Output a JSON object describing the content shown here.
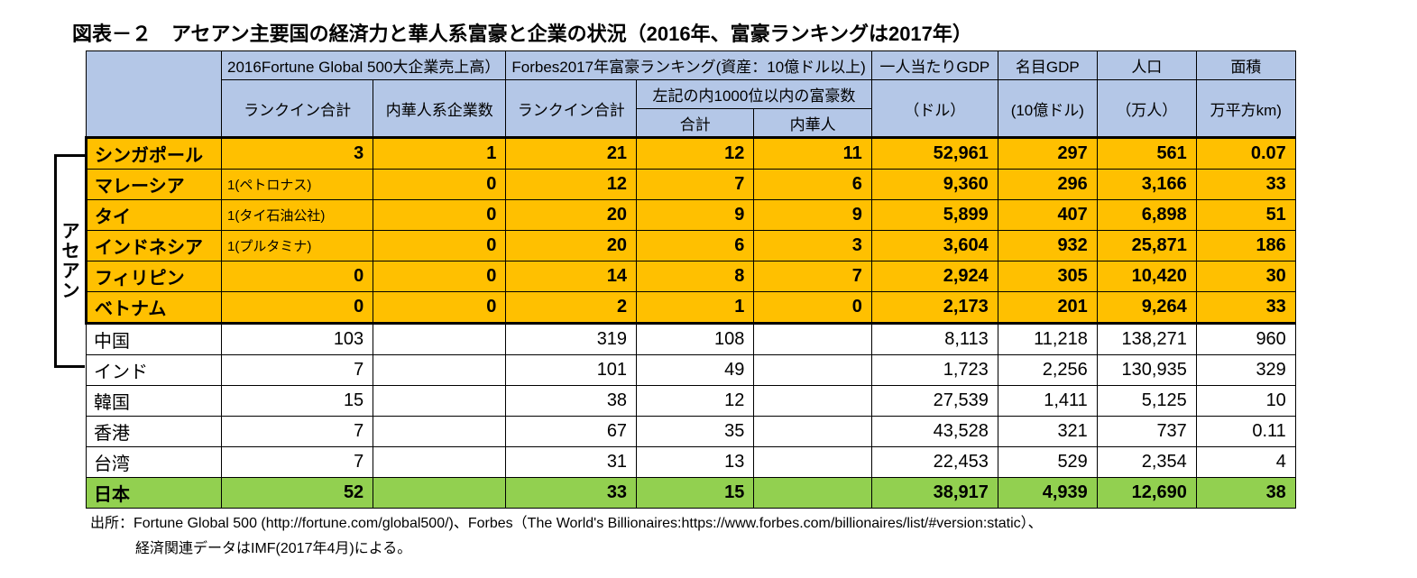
{
  "title": "図表－２　アセアン主要国の経済力と華人系富豪と企業の状況（2016年、富豪ランキングは2017年）",
  "group_label": "アセアン",
  "headers": {
    "fortune_group": "2016Fortune Global 500大企業売上高）",
    "fortune_rankin": "ランクイン合計",
    "fortune_chinese": "内華人系企業数",
    "forbes_group": "Forbes2017年富豪ランキング(資産：10億ドル以上)",
    "forbes_rankin": "ランクイン合計",
    "forbes_1000": "左記の内1000位以内の富豪数",
    "forbes_total": "合計",
    "forbes_chinese": "内華人",
    "gdp_pc": "一人当たりGDP",
    "gdp_pc_unit": "（ドル）",
    "gdp_nom": "名目GDP",
    "gdp_nom_unit": "(10億ドル)",
    "pop": "人口",
    "pop_unit": "（万人）",
    "area": "面積",
    "area_unit": "万平方km)"
  },
  "rows": [
    {
      "kind": "asean",
      "pos": "first",
      "country": "シンガポール",
      "fortune": "3",
      "fortune_txt": "",
      "chinese_co": "1",
      "forbes": "21",
      "f1000": "12",
      "f_cn": "11",
      "gdppc": "52,961",
      "gdp": "297",
      "pop": "561",
      "area": "0.07"
    },
    {
      "kind": "asean",
      "country": "マレーシア",
      "fortune": "",
      "fortune_txt": "1(ペトロナス)",
      "chinese_co": "0",
      "forbes": "12",
      "f1000": "7",
      "f_cn": "6",
      "gdppc": "9,360",
      "gdp": "296",
      "pop": "3,166",
      "area": "33"
    },
    {
      "kind": "asean",
      "country": "タイ",
      "fortune": "",
      "fortune_txt": "1(タイ石油公社)",
      "chinese_co": "0",
      "forbes": "20",
      "f1000": "9",
      "f_cn": "9",
      "gdppc": "5,899",
      "gdp": "407",
      "pop": "6,898",
      "area": "51"
    },
    {
      "kind": "asean",
      "country": "インドネシア",
      "fortune": "",
      "fortune_txt": "1(プルタミナ)",
      "chinese_co": "0",
      "forbes": "20",
      "f1000": "6",
      "f_cn": "3",
      "gdppc": "3,604",
      "gdp": "932",
      "pop": "25,871",
      "area": "186"
    },
    {
      "kind": "asean",
      "country": "フィリピン",
      "fortune": "0",
      "fortune_txt": "",
      "chinese_co": "0",
      "forbes": "14",
      "f1000": "8",
      "f_cn": "7",
      "gdppc": "2,924",
      "gdp": "305",
      "pop": "10,420",
      "area": "30"
    },
    {
      "kind": "asean",
      "pos": "last",
      "country": "ベトナム",
      "fortune": "0",
      "fortune_txt": "",
      "chinese_co": "0",
      "forbes": "2",
      "f1000": "1",
      "f_cn": "0",
      "gdppc": "2,173",
      "gdp": "201",
      "pop": "9,264",
      "area": "33"
    },
    {
      "kind": "other",
      "country": "中国",
      "fortune": "103",
      "chinese_co": "",
      "forbes": "319",
      "f1000": "108",
      "f_cn": "",
      "gdppc": "8,113",
      "gdp": "11,218",
      "pop": "138,271",
      "area": "960"
    },
    {
      "kind": "other",
      "country": "インド",
      "fortune": "7",
      "chinese_co": "",
      "forbes": "101",
      "f1000": "49",
      "f_cn": "",
      "gdppc": "1,723",
      "gdp": "2,256",
      "pop": "130,935",
      "area": "329"
    },
    {
      "kind": "other",
      "country": "韓国",
      "fortune": "15",
      "chinese_co": "",
      "forbes": "38",
      "f1000": "12",
      "f_cn": "",
      "gdppc": "27,539",
      "gdp": "1,411",
      "pop": "5,125",
      "area": "10"
    },
    {
      "kind": "other",
      "country": "香港",
      "fortune": "7",
      "chinese_co": "",
      "forbes": "67",
      "f1000": "35",
      "f_cn": "",
      "gdppc": "43,528",
      "gdp": "321",
      "pop": "737",
      "area": "0.11"
    },
    {
      "kind": "other",
      "country": "台湾",
      "fortune": "7",
      "chinese_co": "",
      "forbes": "31",
      "f1000": "13",
      "f_cn": "",
      "gdppc": "22,453",
      "gdp": "529",
      "pop": "2,354",
      "area": "4"
    },
    {
      "kind": "japan",
      "country": "日本",
      "fortune": "52",
      "chinese_co": "",
      "forbes": "33",
      "f1000": "15",
      "f_cn": "",
      "gdppc": "38,917",
      "gdp": "4,939",
      "pop": "12,690",
      "area": "38"
    }
  ],
  "source1": "出所：Fortune Global 500 (http://fortune.com/global500/)、Forbes（The World's Billionaires:https://www.forbes.com/billionaires/list/#version:static）、",
  "source2": "経済関連データはIMF(2017年4月)による。",
  "style": {
    "type": "table",
    "header_bg": "#b4c7e7",
    "asean_bg": "#ffc000",
    "japan_bg": "#92d050",
    "other_bg": "#ffffff",
    "border_color": "#000000",
    "title_fontsize": 22,
    "cell_fontsize": 20,
    "header_fontsize": 17,
    "source_fontsize": 16,
    "font_family": "MS PGothic"
  }
}
